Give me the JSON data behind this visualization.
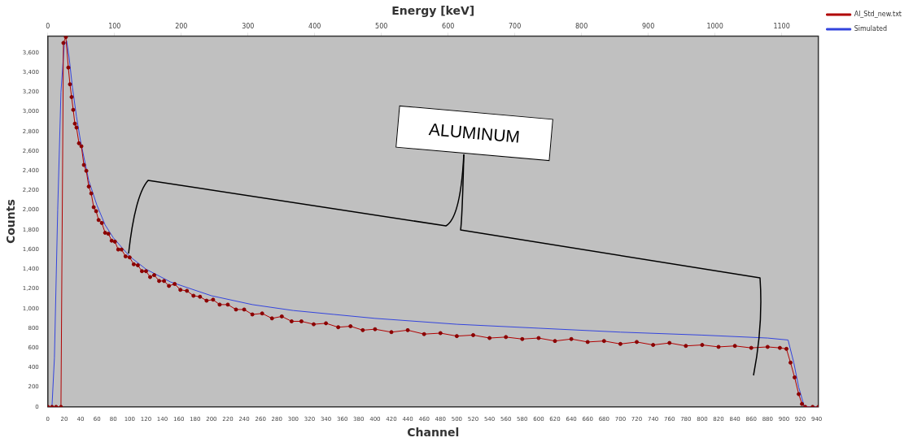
{
  "chart_data": {
    "type": "line",
    "xlabel": "Channel",
    "ylabel": "Counts",
    "x2label": "Energy [keV]",
    "legend": "top right",
    "annotations": [
      "ALUMINUM"
    ],
    "xlim": [
      0,
      942
    ],
    "xticks": [
      0,
      20,
      40,
      60,
      80,
      100,
      120,
      140,
      160,
      180,
      200,
      220,
      240,
      260,
      280,
      300,
      320,
      340,
      360,
      380,
      400,
      420,
      440,
      460,
      480,
      500,
      520,
      540,
      560,
      580,
      600,
      620,
      640,
      660,
      680,
      700,
      720,
      740,
      760,
      780,
      800,
      820,
      840,
      860,
      880,
      900,
      920,
      940
    ],
    "x2lim": [
      0,
      1155
    ],
    "x2ticks": [
      0,
      100,
      200,
      300,
      400,
      500,
      600,
      700,
      800,
      900,
      1000,
      1100
    ],
    "ylim": [
      0,
      3770
    ],
    "yticks": [
      0,
      200,
      400,
      600,
      800,
      {
        "value": 1000,
        "label": "1,000"
      },
      {
        "value": 1200,
        "label": "1,200"
      },
      {
        "value": 1400,
        "label": "1,400"
      },
      {
        "value": 1600,
        "label": "1,600"
      },
      {
        "value": 1800,
        "label": "1,800"
      },
      {
        "value": 2000,
        "label": "2,000"
      },
      {
        "value": 2200,
        "label": "2,200"
      },
      {
        "value": 2400,
        "label": "2,400"
      },
      {
        "value": 2600,
        "label": "2,600"
      },
      {
        "value": 2800,
        "label": "2,800"
      },
      {
        "value": 3000,
        "label": "3,000"
      },
      {
        "value": 3200,
        "label": "3,200"
      },
      {
        "value": 3400,
        "label": "3,400"
      },
      {
        "value": 3600,
        "label": "3,600"
      }
    ],
    "series": [
      {
        "name": "Al_Std_new.txt",
        "color": "#b00000",
        "type": "line",
        "marker": "circle",
        "x": [
          0,
          5,
          10,
          16,
          19,
          22,
          25,
          27,
          29,
          31,
          33,
          35,
          38,
          41,
          44,
          47,
          50,
          53,
          56,
          59,
          62,
          66,
          70,
          74,
          78,
          82,
          86,
          90,
          95,
          100,
          105,
          110,
          115,
          120,
          125,
          130,
          136,
          142,
          148,
          155,
          162,
          170,
          178,
          186,
          194,
          202,
          210,
          220,
          230,
          240,
          250,
          262,
          274,
          286,
          298,
          310,
          325,
          340,
          355,
          370,
          385,
          400,
          420,
          440,
          460,
          480,
          500,
          520,
          540,
          560,
          580,
          600,
          620,
          640,
          660,
          680,
          700,
          720,
          740,
          760,
          780,
          800,
          820,
          840,
          860,
          880,
          895,
          903,
          908,
          913,
          918,
          922,
          926,
          935,
          942
        ],
        "values": [
          0,
          0,
          0,
          0,
          3700,
          3760,
          3450,
          3280,
          3150,
          3020,
          2880,
          2840,
          2680,
          2650,
          2460,
          2400,
          2240,
          2170,
          2030,
          1990,
          1900,
          1870,
          1770,
          1760,
          1690,
          1680,
          1600,
          1600,
          1530,
          1520,
          1450,
          1440,
          1380,
          1380,
          1320,
          1340,
          1280,
          1280,
          1230,
          1250,
          1190,
          1180,
          1130,
          1120,
          1080,
          1090,
          1040,
          1040,
          990,
          990,
          940,
          950,
          900,
          920,
          870,
          870,
          840,
          850,
          810,
          820,
          780,
          790,
          760,
          780,
          740,
          750,
          720,
          730,
          700,
          710,
          690,
          700,
          670,
          690,
          660,
          670,
          640,
          660,
          630,
          650,
          620,
          630,
          610,
          620,
          600,
          610,
          600,
          590,
          450,
          300,
          130,
          30,
          0,
          0,
          0
        ]
      },
      {
        "name": "Simulated",
        "color": "#3344dd",
        "type": "line",
        "marker": "none",
        "x": [
          0,
          5,
          8,
          12,
          16,
          20,
          23,
          26,
          30,
          35,
          40,
          50,
          60,
          70,
          80,
          100,
          120,
          150,
          200,
          250,
          300,
          350,
          400,
          500,
          600,
          700,
          800,
          880,
          905,
          912,
          918,
          925,
          942
        ],
        "values": [
          0,
          0,
          500,
          2000,
          3200,
          3680,
          3720,
          3550,
          3250,
          2950,
          2700,
          2300,
          2050,
          1850,
          1720,
          1530,
          1400,
          1270,
          1130,
          1040,
          980,
          940,
          900,
          840,
          800,
          760,
          730,
          700,
          680,
          450,
          200,
          0,
          0
        ]
      }
    ]
  }
}
